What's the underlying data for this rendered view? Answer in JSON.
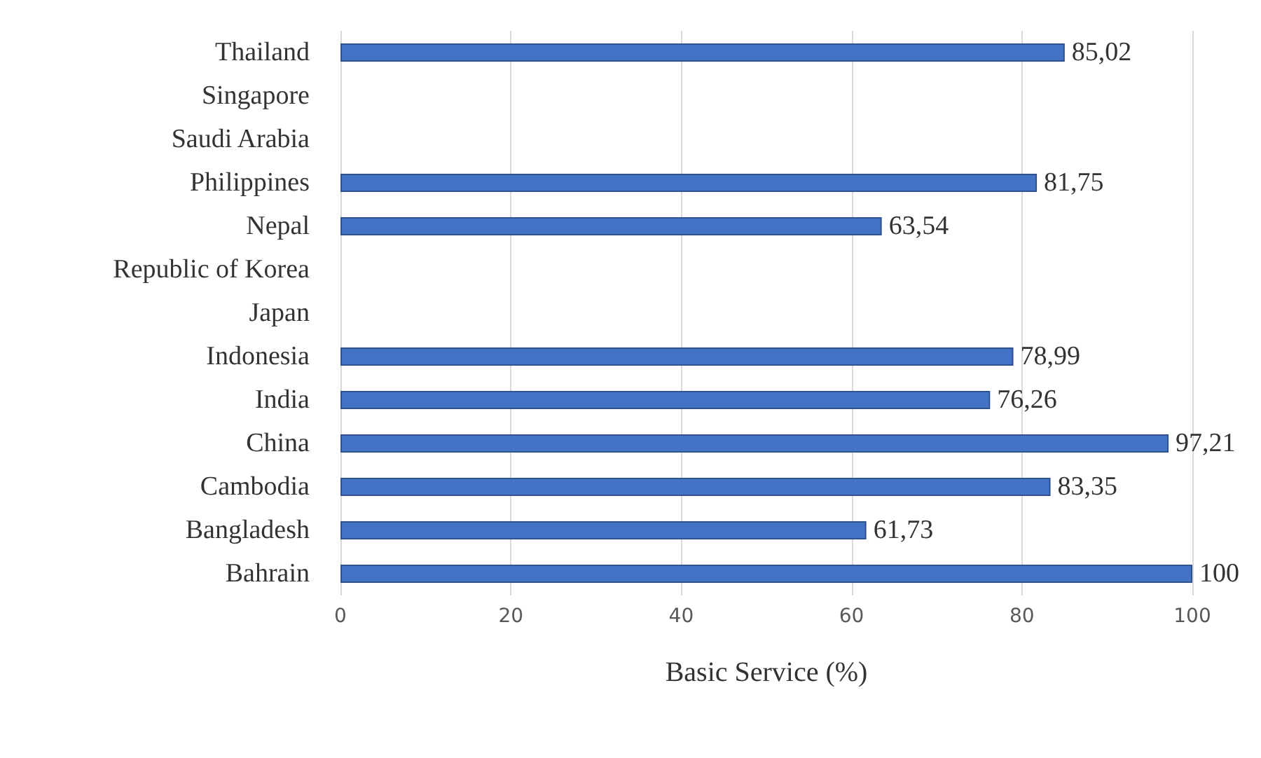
{
  "chart_data": {
    "type": "bar",
    "orientation": "horizontal",
    "xlabel": "Basic Service (%)",
    "categories": [
      "Thailand",
      "Singapore",
      "Saudi Arabia",
      "Philippines",
      "Nepal",
      "Republic of Korea",
      "Japan",
      "Indonesia",
      "India",
      "China",
      "Cambodia",
      "Bangladesh",
      "Bahrain"
    ],
    "values": [
      85.02,
      null,
      null,
      81.75,
      63.54,
      null,
      null,
      78.99,
      76.26,
      97.21,
      83.35,
      61.73,
      100
    ],
    "value_labels": [
      "85,02",
      null,
      null,
      "81,75",
      "63,54",
      null,
      null,
      "78,99",
      "76,26",
      "97,21",
      "83,35",
      "61,73",
      "100"
    ],
    "color": "#4472c4",
    "xlim": [
      0,
      100
    ],
    "xticks": [
      0,
      20,
      40,
      60,
      80,
      100
    ],
    "grid": "x"
  }
}
